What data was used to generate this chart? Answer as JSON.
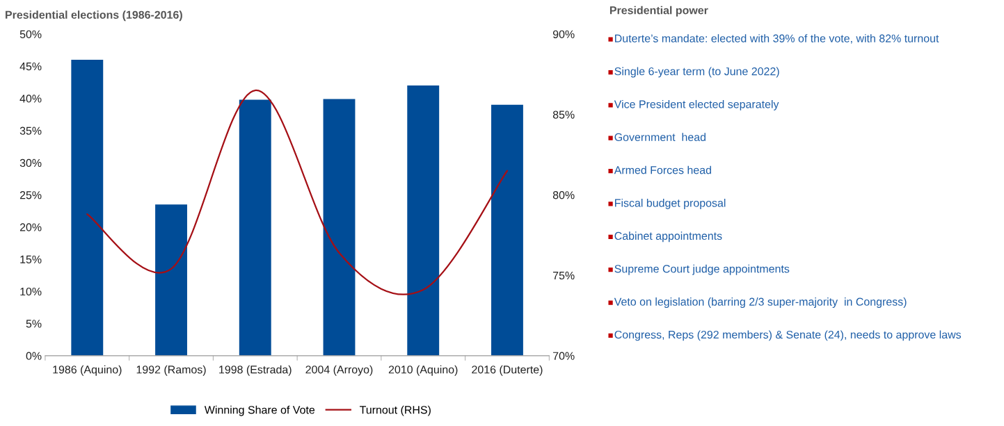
{
  "chart_data": [
    {
      "type": "bar",
      "title": "Presidential elections (1986-2016)",
      "categories": [
        "1986 (Aquino)",
        "1992 (Ramos)",
        "1998 (Estrada)",
        "2004 (Arroyo)",
        "2010 (Aquino)",
        "2016 (Duterte)"
      ],
      "series": [
        {
          "name": "Winning Share of Vote",
          "color": "#004c97",
          "values": [
            46,
            23.5,
            39.8,
            39.9,
            42,
            39
          ]
        },
        {
          "name": "Turnout (RHS)",
          "type": "line",
          "axis": "y2",
          "color": "#a50f15",
          "values": [
            78.8,
            75.4,
            86.5,
            76.4,
            74.1,
            81.5
          ]
        }
      ],
      "ylim": [
        0,
        50
      ],
      "yticks": [
        {
          "value": 0,
          "label": "0%"
        },
        {
          "value": 5,
          "label": "5%"
        },
        {
          "value": 10,
          "label": "10%"
        },
        {
          "value": 15,
          "label": "15%"
        },
        {
          "value": 20,
          "label": "20%"
        },
        {
          "value": 25,
          "label": "25%"
        },
        {
          "value": 30,
          "label": "30%"
        },
        {
          "value": 35,
          "label": "35%"
        },
        {
          "value": 40,
          "label": "40%"
        },
        {
          "value": 45,
          "label": "45%"
        },
        {
          "value": 50,
          "label": "50%"
        }
      ],
      "y2lim": [
        70,
        90
      ],
      "y2ticks": [
        {
          "value": 70,
          "label": "70%"
        },
        {
          "value": 75,
          "label": "75%"
        },
        {
          "value": 80,
          "label": "80%"
        },
        {
          "value": 85,
          "label": "85%"
        },
        {
          "value": 90,
          "label": "90%"
        }
      ],
      "legend": "bottom",
      "grid": false
    },
    {
      "type": "other",
      "title": "Presidential power",
      "annotations": [
        "Duterte’s mandate: elected with 39% of the vote, with 82% turnout",
        "Single 6-year term (to June 2022)",
        "Vice President elected separately",
        "Government  head",
        "Armed Forces head",
        "Fiscal budget proposal",
        "Cabinet appointments",
        "Supreme Court judge appointments",
        "Veto on legislation (barring 2/3 super-majority  in Congress)",
        "Congress, Reps (292 members) & Senate (24), needs to approve laws"
      ]
    }
  ]
}
